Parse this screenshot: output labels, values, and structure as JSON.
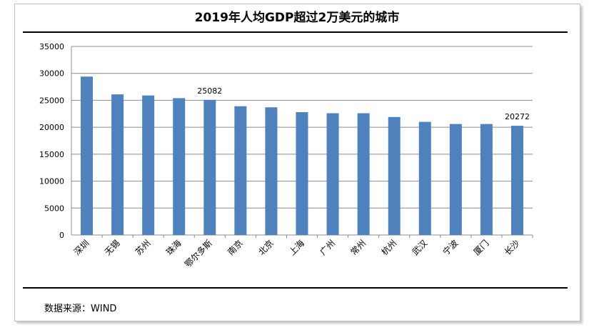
{
  "chart_data": {
    "type": "bar",
    "title": "2019年人均GDP超过2万美元的城市",
    "xlabel": "",
    "ylabel": "",
    "categories": [
      "深圳",
      "无锡",
      "苏州",
      "珠海",
      "鄂尔多斯",
      "南京",
      "北京",
      "上海",
      "广州",
      "常州",
      "杭州",
      "武汉",
      "宁波",
      "厦门",
      "长沙"
    ],
    "values": [
      29400,
      26100,
      25900,
      25400,
      25082,
      23900,
      23700,
      22800,
      22600,
      22600,
      21900,
      21000,
      20600,
      20600,
      20272
    ],
    "data_labels": [
      {
        "category": "鄂尔多斯",
        "text": "25082"
      },
      {
        "category": "长沙",
        "text": "20272"
      }
    ],
    "ylim": [
      0,
      35000
    ],
    "yticks": [
      0,
      5000,
      10000,
      15000,
      20000,
      25000,
      30000,
      35000
    ],
    "grid": true,
    "legend": "none",
    "bar_color": "#4f81bd"
  },
  "source_note": "数据来源：WIND"
}
